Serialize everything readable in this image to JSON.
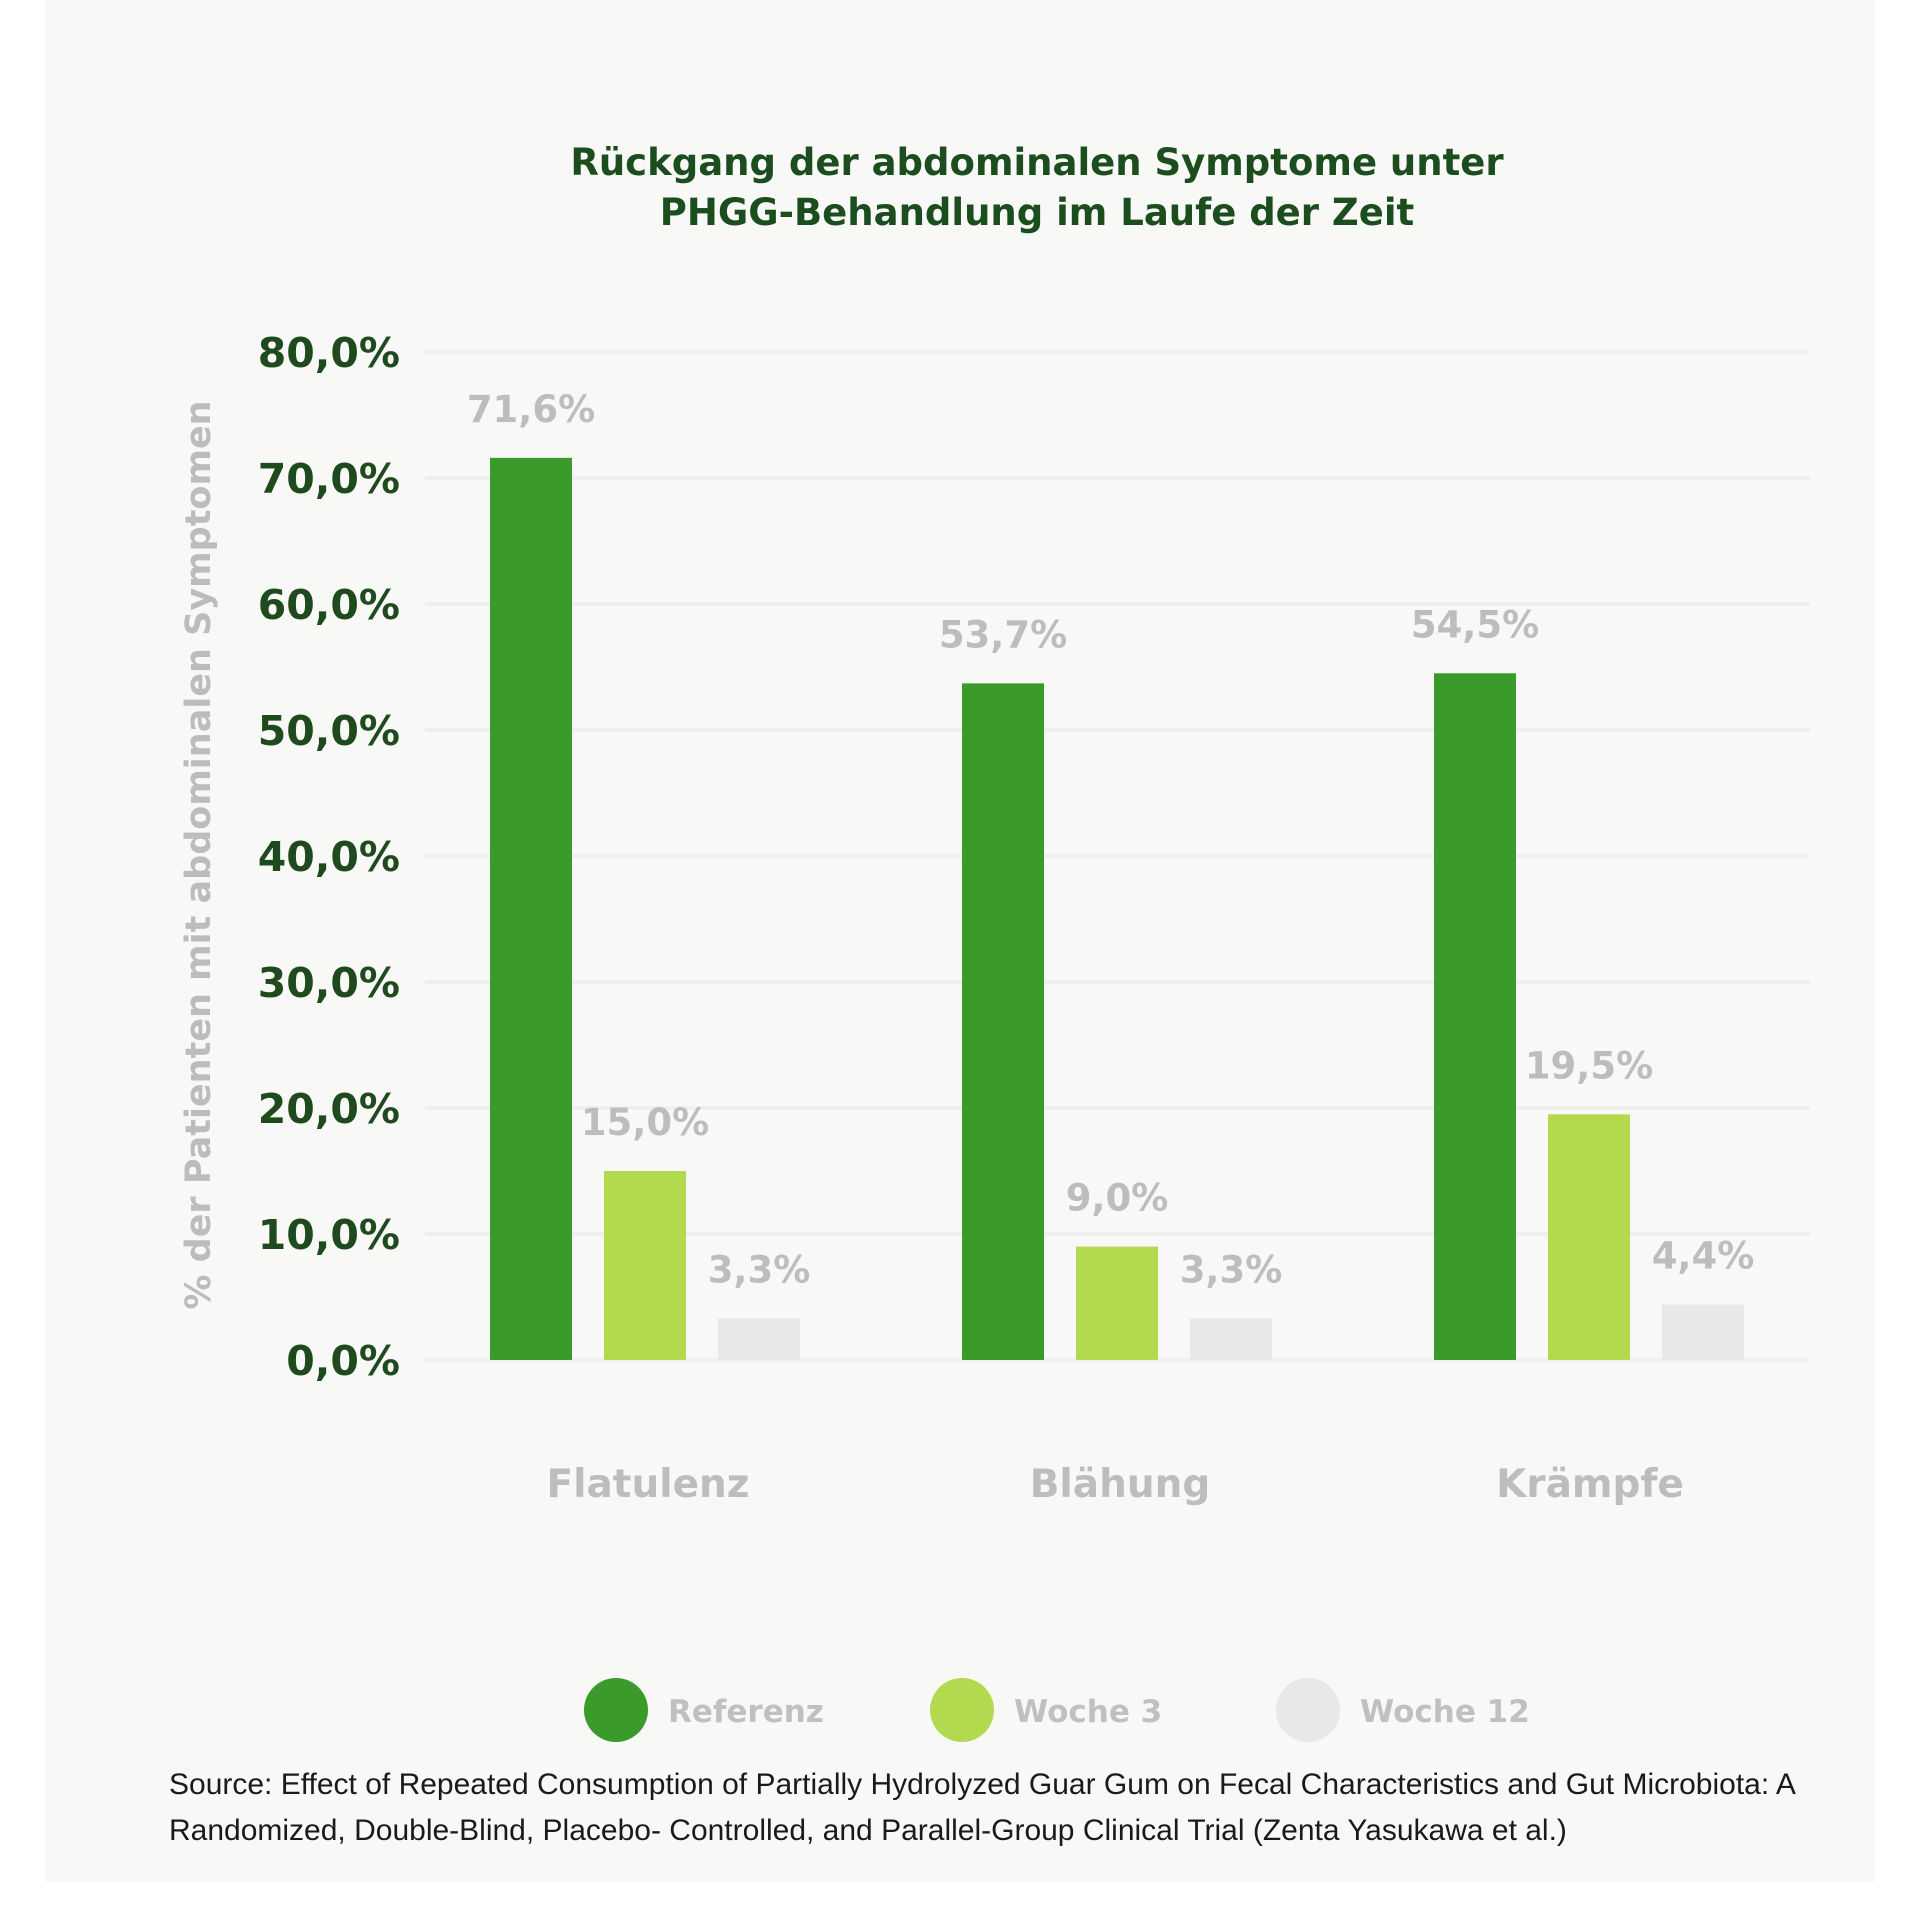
{
  "chart_data": {
    "type": "bar",
    "title_lines": [
      "Rückgang der abdominalen Symptome unter",
      "PHGG-Behandlung im Laufe der Zeit"
    ],
    "ylabel": "% der Patienten mit abdominalen Symptomen",
    "xlabel": "",
    "ylim": [
      0,
      80
    ],
    "yticks": [
      0,
      10,
      20,
      30,
      40,
      50,
      60,
      70,
      80
    ],
    "ytick_labels": [
      "0,0%",
      "10,0%",
      "20,0%",
      "30,0%",
      "40,0%",
      "50,0%",
      "60,0%",
      "70,0%",
      "80,0%"
    ],
    "categories": [
      "Flatulenz",
      "Blähung",
      "Krämpfe"
    ],
    "series": [
      {
        "name": "Referenz",
        "color": "#3a9b2a",
        "values": [
          71.6,
          53.7,
          54.5
        ],
        "labels": [
          "71,6%",
          "53,7%",
          "54,5%"
        ]
      },
      {
        "name": "Woche 3",
        "color": "#b3da4f",
        "values": [
          15.0,
          9.0,
          19.5
        ],
        "labels": [
          "15,0%",
          "9,0%",
          "19,5%"
        ]
      },
      {
        "name": "Woche 12",
        "color": "#e8e8e6",
        "values": [
          3.3,
          3.3,
          4.4
        ],
        "labels": [
          "3,3%",
          "3,3%",
          "4,4%"
        ]
      }
    ],
    "grid": true,
    "legend_position": "bottom"
  },
  "source": "Source: Effect of Repeated Consumption of Partially Hydrolyzed Guar Gum on Fecal Characteristics and Gut Microbiota: A Randomized, Double-Blind, Placebo- Controlled, and Parallel-Group Clinical Trial (Zenta Yasukawa et al.)"
}
